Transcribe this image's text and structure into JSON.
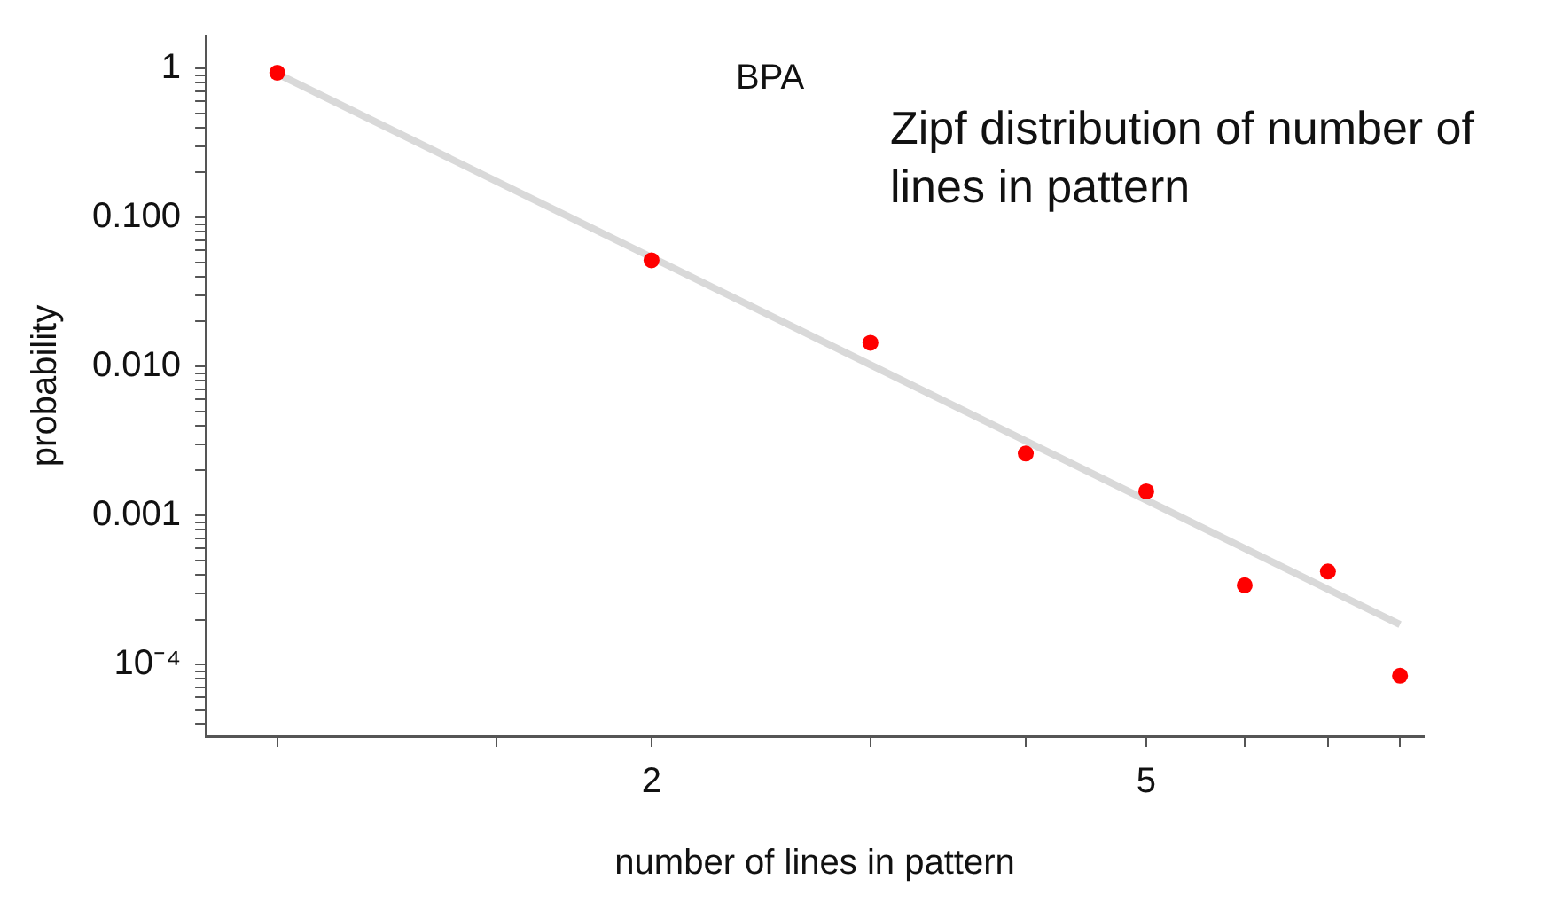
{
  "chart_data": {
    "type": "scatter",
    "xlabel": "number of lines in pattern",
    "ylabel": "probability",
    "annotations": [
      "BPA",
      "Zipf distribution of number of lines in pattern"
    ],
    "log": "xy",
    "grid": false,
    "legend": false,
    "xlim": [
      0.876,
      8.36
    ],
    "ylim": [
      3.3e-05,
      1.66
    ],
    "xticks": [
      {
        "value": 1,
        "label": null
      },
      {
        "value": 1.5,
        "label": null
      },
      2,
      {
        "value": 3,
        "label": null
      },
      {
        "value": 4,
        "label": null
      },
      5,
      {
        "value": 6,
        "label": null
      },
      {
        "value": 7,
        "label": null
      },
      {
        "value": 8,
        "label": null
      }
    ],
    "yticks": [
      {
        "value": 4e-05,
        "label": null
      },
      {
        "value": 5e-05,
        "label": null
      },
      {
        "value": 6e-05,
        "label": null
      },
      {
        "value": 7e-05,
        "label": null
      },
      {
        "value": 8e-05,
        "label": null
      },
      {
        "value": 9e-05,
        "label": null
      },
      {
        "value": 0.0001,
        "label": "10⁻⁴"
      },
      {
        "value": 0.0002,
        "label": null
      },
      {
        "value": 0.0003,
        "label": null
      },
      {
        "value": 0.0004,
        "label": null
      },
      {
        "value": 0.0005,
        "label": null
      },
      {
        "value": 0.0006,
        "label": null
      },
      {
        "value": 0.0007,
        "label": null
      },
      {
        "value": 0.0008,
        "label": null
      },
      {
        "value": 0.0009,
        "label": null
      },
      {
        "value": 0.001,
        "label": "0.001"
      },
      {
        "value": 0.002,
        "label": null
      },
      {
        "value": 0.003,
        "label": null
      },
      {
        "value": 0.004,
        "label": null
      },
      {
        "value": 0.005,
        "label": null
      },
      {
        "value": 0.006,
        "label": null
      },
      {
        "value": 0.007,
        "label": null
      },
      {
        "value": 0.008,
        "label": null
      },
      {
        "value": 0.009,
        "label": null
      },
      {
        "value": 0.01,
        "label": "0.010"
      },
      {
        "value": 0.02,
        "label": null
      },
      {
        "value": 0.03,
        "label": null
      },
      {
        "value": 0.04,
        "label": null
      },
      {
        "value": 0.05,
        "label": null
      },
      {
        "value": 0.06,
        "label": null
      },
      {
        "value": 0.07,
        "label": null
      },
      {
        "value": 0.08,
        "label": null
      },
      {
        "value": 0.09,
        "label": null
      },
      {
        "value": 0.1,
        "label": "0.100"
      },
      {
        "value": 0.2,
        "label": null
      },
      {
        "value": 0.3,
        "label": null
      },
      {
        "value": 0.4,
        "label": null
      },
      {
        "value": 0.5,
        "label": null
      },
      {
        "value": 0.6,
        "label": null
      },
      {
        "value": 0.7,
        "label": null
      },
      {
        "value": 0.8,
        "label": null
      },
      {
        "value": 0.9,
        "label": null
      },
      1
    ],
    "series": [
      {
        "type": "line",
        "color": "#d9d9d9",
        "x": [
          1,
          8
        ],
        "values": [
          0.92,
          0.000185
        ],
        "marker": "none"
      },
      {
        "type": "scatter",
        "color": "#ff0000",
        "x": [
          1,
          2,
          3,
          4,
          5,
          6,
          7,
          8
        ],
        "values": [
          0.935,
          0.0515,
          0.0144,
          0.0026,
          0.00145,
          0.00034,
          0.00042,
          8.4e-05
        ],
        "marker": "circle"
      }
    ]
  }
}
